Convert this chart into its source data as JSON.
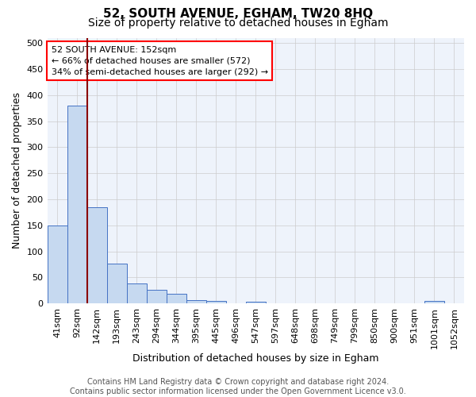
{
  "title_line1": "52, SOUTH AVENUE, EGHAM, TW20 8HQ",
  "title_line2": "Size of property relative to detached houses in Egham",
  "xlabel": "Distribution of detached houses by size in Egham",
  "ylabel": "Number of detached properties",
  "bins": [
    "41sqm",
    "92sqm",
    "142sqm",
    "193sqm",
    "243sqm",
    "294sqm",
    "344sqm",
    "395sqm",
    "445sqm",
    "496sqm",
    "547sqm",
    "597sqm",
    "648sqm",
    "698sqm",
    "749sqm",
    "799sqm",
    "850sqm",
    "900sqm",
    "951sqm",
    "1001sqm",
    "1052sqm"
  ],
  "values": [
    150,
    380,
    185,
    77,
    39,
    26,
    18,
    7,
    5,
    0,
    4,
    0,
    0,
    0,
    0,
    0,
    0,
    0,
    0,
    5,
    0
  ],
  "bar_color": "#c6d9f0",
  "bar_edge_color": "#4472c4",
  "background_color": "#eef3fb",
  "grid_color": "#cccccc",
  "red_line_bin_idx": 2,
  "annotation_line1": "52 SOUTH AVENUE: 152sqm",
  "annotation_line2": "← 66% of detached houses are smaller (572)",
  "annotation_line3": "34% of semi-detached houses are larger (292) →",
  "annotation_box_color": "white",
  "annotation_box_edge": "red",
  "ylim": [
    0,
    510
  ],
  "yticks": [
    0,
    50,
    100,
    150,
    200,
    250,
    300,
    350,
    400,
    450,
    500
  ],
  "footnote_line1": "Contains HM Land Registry data © Crown copyright and database right 2024.",
  "footnote_line2": "Contains public sector information licensed under the Open Government Licence v3.0.",
  "title_fontsize": 11,
  "subtitle_fontsize": 10,
  "axis_label_fontsize": 9,
  "tick_fontsize": 8,
  "annotation_fontsize": 8,
  "footnote_fontsize": 7
}
